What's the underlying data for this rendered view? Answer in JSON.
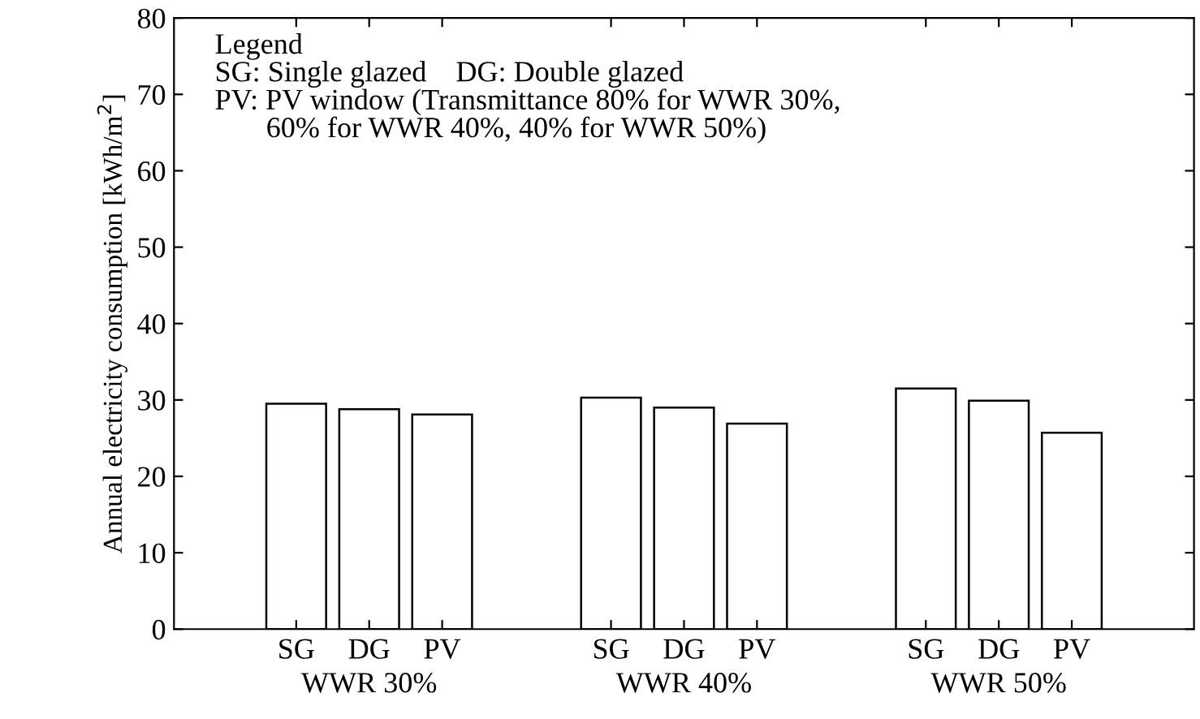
{
  "chart_data": {
    "type": "bar",
    "ylabel": "Annual electricity consumption [kWh/m$^{2}$]",
    "categories": [
      "WWR 30%",
      "WWR 40%",
      "WWR 50%"
    ],
    "series": [
      {
        "name": "SG",
        "color": "#ffffff",
        "values": [
          29.5,
          30.3,
          31.5
        ]
      },
      {
        "name": "DG",
        "color": "#ffffff",
        "values": [
          28.8,
          29.0,
          29.9
        ]
      },
      {
        "name": "PV",
        "color": "#ffffff",
        "values": [
          28.1,
          26.9,
          25.7
        ]
      }
    ],
    "ylim": [
      0,
      80
    ],
    "yticks": [
      0,
      10,
      20,
      30,
      40,
      50,
      60,
      70,
      80
    ],
    "grid": false,
    "legend": false,
    "annotations": [
      "Legend\nSG: Single glazed    DG: Double glazed\nPV: PV window (Transmittance 80% for WWR 30%,\n       60% for WWR 40%, 40% for WWR 50%)"
    ]
  }
}
